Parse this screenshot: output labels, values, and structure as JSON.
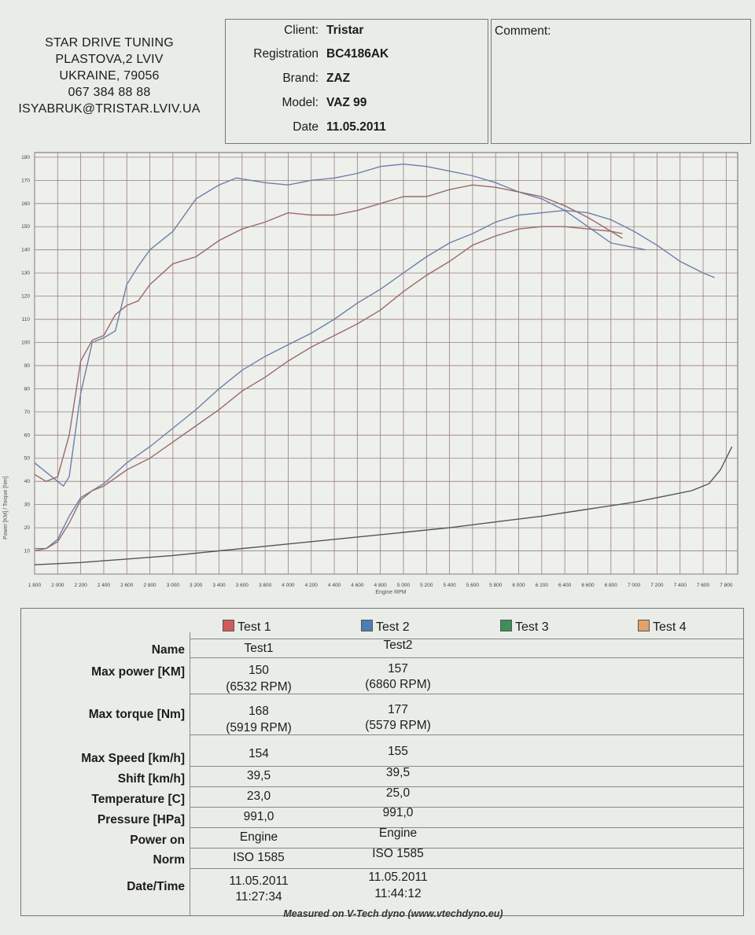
{
  "shop": {
    "lines": [
      "STAR DRIVE TUNING",
      "PLASTOVA,2 LVIV",
      "UKRAINE, 79056",
      "067 384 88 88",
      "ISYABRUK@TRISTAR.LVIV.UA"
    ]
  },
  "vehicle": {
    "client_label": "Client:",
    "client": "Tristar",
    "registration_label": "Registration",
    "registration": "BC4186AK",
    "brand_label": "Brand:",
    "brand": "ZAZ",
    "model_label": "Model:",
    "model": "VAZ 99",
    "date_label": "Date",
    "date": "11.05.2011"
  },
  "comment": {
    "label": "Comment:"
  },
  "chart_data": {
    "type": "line",
    "xlabel": "Engine RPM",
    "ylabel": "Power [KM] / Torque [Nm]",
    "xlim": [
      1800,
      7900
    ],
    "ylim": [
      0,
      182
    ],
    "grid": true,
    "x_ticks": [
      "1 800",
      "2 000",
      "2 200",
      "2 400",
      "2 600",
      "2 800",
      "3 000",
      "3 200",
      "3 400",
      "3 600",
      "3 800",
      "4 000",
      "4 200",
      "4 400",
      "4 600",
      "4 800",
      "5 000",
      "5 200",
      "5 400",
      "5 600",
      "5 800",
      "6 000",
      "6 200",
      "6 400",
      "6 600",
      "6 800",
      "7 000",
      "7 200",
      "7 400",
      "7 600",
      "7 800"
    ],
    "y_ticks": [
      "10",
      "20",
      "30",
      "40",
      "50",
      "60",
      "70",
      "80",
      "90",
      "100",
      "110",
      "120",
      "130",
      "140",
      "150",
      "160",
      "170",
      "180"
    ],
    "series": [
      {
        "color": "#6c7fa8",
        "points": [
          [
            1800,
            48
          ],
          [
            1900,
            44
          ],
          [
            2000,
            40
          ],
          [
            2050,
            38
          ],
          [
            2100,
            42
          ],
          [
            2200,
            78
          ],
          [
            2300,
            100
          ],
          [
            2400,
            102
          ],
          [
            2500,
            105
          ],
          [
            2600,
            125
          ],
          [
            2700,
            133
          ],
          [
            2800,
            140
          ],
          [
            3000,
            148
          ],
          [
            3200,
            162
          ],
          [
            3400,
            168
          ],
          [
            3550,
            171
          ],
          [
            3800,
            169
          ],
          [
            4000,
            168
          ],
          [
            4200,
            170
          ],
          [
            4400,
            171
          ],
          [
            4600,
            173
          ],
          [
            4800,
            176
          ],
          [
            5000,
            177
          ],
          [
            5200,
            176
          ],
          [
            5400,
            174
          ],
          [
            5600,
            172
          ],
          [
            5800,
            169
          ],
          [
            6000,
            165
          ],
          [
            6200,
            162
          ],
          [
            6400,
            157
          ],
          [
            6600,
            150
          ],
          [
            6800,
            143
          ],
          [
            7000,
            141
          ],
          [
            7100,
            140
          ]
        ]
      },
      {
        "color": "#9a6a6e",
        "points": [
          [
            1800,
            43
          ],
          [
            1900,
            40
          ],
          [
            2000,
            42
          ],
          [
            2100,
            60
          ],
          [
            2200,
            92
          ],
          [
            2300,
            101
          ],
          [
            2400,
            103
          ],
          [
            2500,
            112
          ],
          [
            2600,
            116
          ],
          [
            2700,
            118
          ],
          [
            2800,
            125
          ],
          [
            3000,
            134
          ],
          [
            3200,
            137
          ],
          [
            3400,
            144
          ],
          [
            3600,
            149
          ],
          [
            3800,
            152
          ],
          [
            4000,
            156
          ],
          [
            4200,
            155
          ],
          [
            4400,
            155
          ],
          [
            4600,
            157
          ],
          [
            4800,
            160
          ],
          [
            5000,
            163
          ],
          [
            5200,
            163
          ],
          [
            5400,
            166
          ],
          [
            5600,
            168
          ],
          [
            5800,
            167
          ],
          [
            6000,
            165
          ],
          [
            6200,
            163
          ],
          [
            6400,
            159
          ],
          [
            6600,
            154
          ],
          [
            6800,
            148
          ],
          [
            6900,
            145
          ]
        ]
      },
      {
        "color": "#6c7fa8",
        "points": [
          [
            1800,
            11
          ],
          [
            1900,
            11
          ],
          [
            2000,
            15
          ],
          [
            2100,
            25
          ],
          [
            2200,
            33
          ],
          [
            2300,
            36
          ],
          [
            2400,
            39
          ],
          [
            2600,
            48
          ],
          [
            2800,
            55
          ],
          [
            3000,
            63
          ],
          [
            3200,
            71
          ],
          [
            3400,
            80
          ],
          [
            3600,
            88
          ],
          [
            3800,
            94
          ],
          [
            4000,
            99
          ],
          [
            4200,
            104
          ],
          [
            4400,
            110
          ],
          [
            4600,
            117
          ],
          [
            4800,
            123
          ],
          [
            5000,
            130
          ],
          [
            5200,
            137
          ],
          [
            5400,
            143
          ],
          [
            5600,
            147
          ],
          [
            5800,
            152
          ],
          [
            6000,
            155
          ],
          [
            6200,
            156
          ],
          [
            6400,
            157
          ],
          [
            6600,
            156
          ],
          [
            6800,
            153
          ],
          [
            7000,
            148
          ],
          [
            7200,
            142
          ],
          [
            7400,
            135
          ],
          [
            7600,
            130
          ],
          [
            7700,
            128
          ]
        ]
      },
      {
        "color": "#9a6a6e",
        "points": [
          [
            1800,
            10
          ],
          [
            1900,
            11
          ],
          [
            2000,
            14
          ],
          [
            2100,
            22
          ],
          [
            2200,
            32
          ],
          [
            2300,
            36
          ],
          [
            2400,
            38
          ],
          [
            2600,
            45
          ],
          [
            2800,
            50
          ],
          [
            3000,
            57
          ],
          [
            3200,
            64
          ],
          [
            3400,
            71
          ],
          [
            3600,
            79
          ],
          [
            3800,
            85
          ],
          [
            4000,
            92
          ],
          [
            4200,
            98
          ],
          [
            4400,
            103
          ],
          [
            4600,
            108
          ],
          [
            4800,
            114
          ],
          [
            5000,
            122
          ],
          [
            5200,
            129
          ],
          [
            5400,
            135
          ],
          [
            5600,
            142
          ],
          [
            5800,
            146
          ],
          [
            6000,
            149
          ],
          [
            6200,
            150
          ],
          [
            6400,
            150
          ],
          [
            6600,
            149
          ],
          [
            6800,
            148
          ],
          [
            6900,
            147
          ]
        ]
      },
      {
        "color": "#555555",
        "points": [
          [
            1800,
            4
          ],
          [
            2200,
            5
          ],
          [
            2600,
            6.5
          ],
          [
            3000,
            8
          ],
          [
            3400,
            10
          ],
          [
            3800,
            12
          ],
          [
            4200,
            14
          ],
          [
            4600,
            16
          ],
          [
            5000,
            18
          ],
          [
            5400,
            20
          ],
          [
            5800,
            22.5
          ],
          [
            6200,
            25
          ],
          [
            6600,
            28
          ],
          [
            7000,
            31
          ],
          [
            7300,
            34
          ],
          [
            7500,
            36
          ],
          [
            7650,
            39
          ],
          [
            7750,
            45
          ],
          [
            7850,
            55
          ]
        ]
      }
    ]
  },
  "results": {
    "tests": [
      {
        "label": "Test 1",
        "color": "#d05a5e"
      },
      {
        "label": "Test 2",
        "color": "#4c7fb4"
      },
      {
        "label": "Test 3",
        "color": "#3f8f58"
      },
      {
        "label": "Test 4",
        "color": "#e2a26a"
      }
    ],
    "labels": {
      "name": "Name",
      "max_power": "Max power [KM]",
      "max_torque": "Max torque [Nm]",
      "max_speed": "Max Speed [km/h]",
      "shift": "Shift [km/h]",
      "temperature": "Temperature [C]",
      "pressure": "Pressure [HPa]",
      "power_on": "Power on",
      "norm": "Norm",
      "datetime": "Date/Time"
    },
    "test1": {
      "name": "Test1",
      "max_power": "150",
      "max_power_rpm": "(6532 RPM)",
      "max_torque": "168",
      "max_torque_rpm": "(5919 RPM)",
      "max_speed": "154",
      "shift": "39,5",
      "temperature": "23,0",
      "pressure": "991,0",
      "power_on": "Engine",
      "norm": "ISO 1585",
      "date": "11.05.2011",
      "time": "11:27:34"
    },
    "test2": {
      "name": "Test2",
      "max_power": "157",
      "max_power_rpm": "(6860 RPM)",
      "max_torque": "177",
      "max_torque_rpm": "(5579 RPM)",
      "max_speed": "155",
      "shift": "39,5",
      "temperature": "25,0",
      "pressure": "991,0",
      "power_on": "Engine",
      "norm": "ISO 1585",
      "date": "11.05.2011",
      "time": "11:44:12"
    }
  },
  "footer": "Measured on V-Tech dyno (www.vtechdyno.eu)"
}
